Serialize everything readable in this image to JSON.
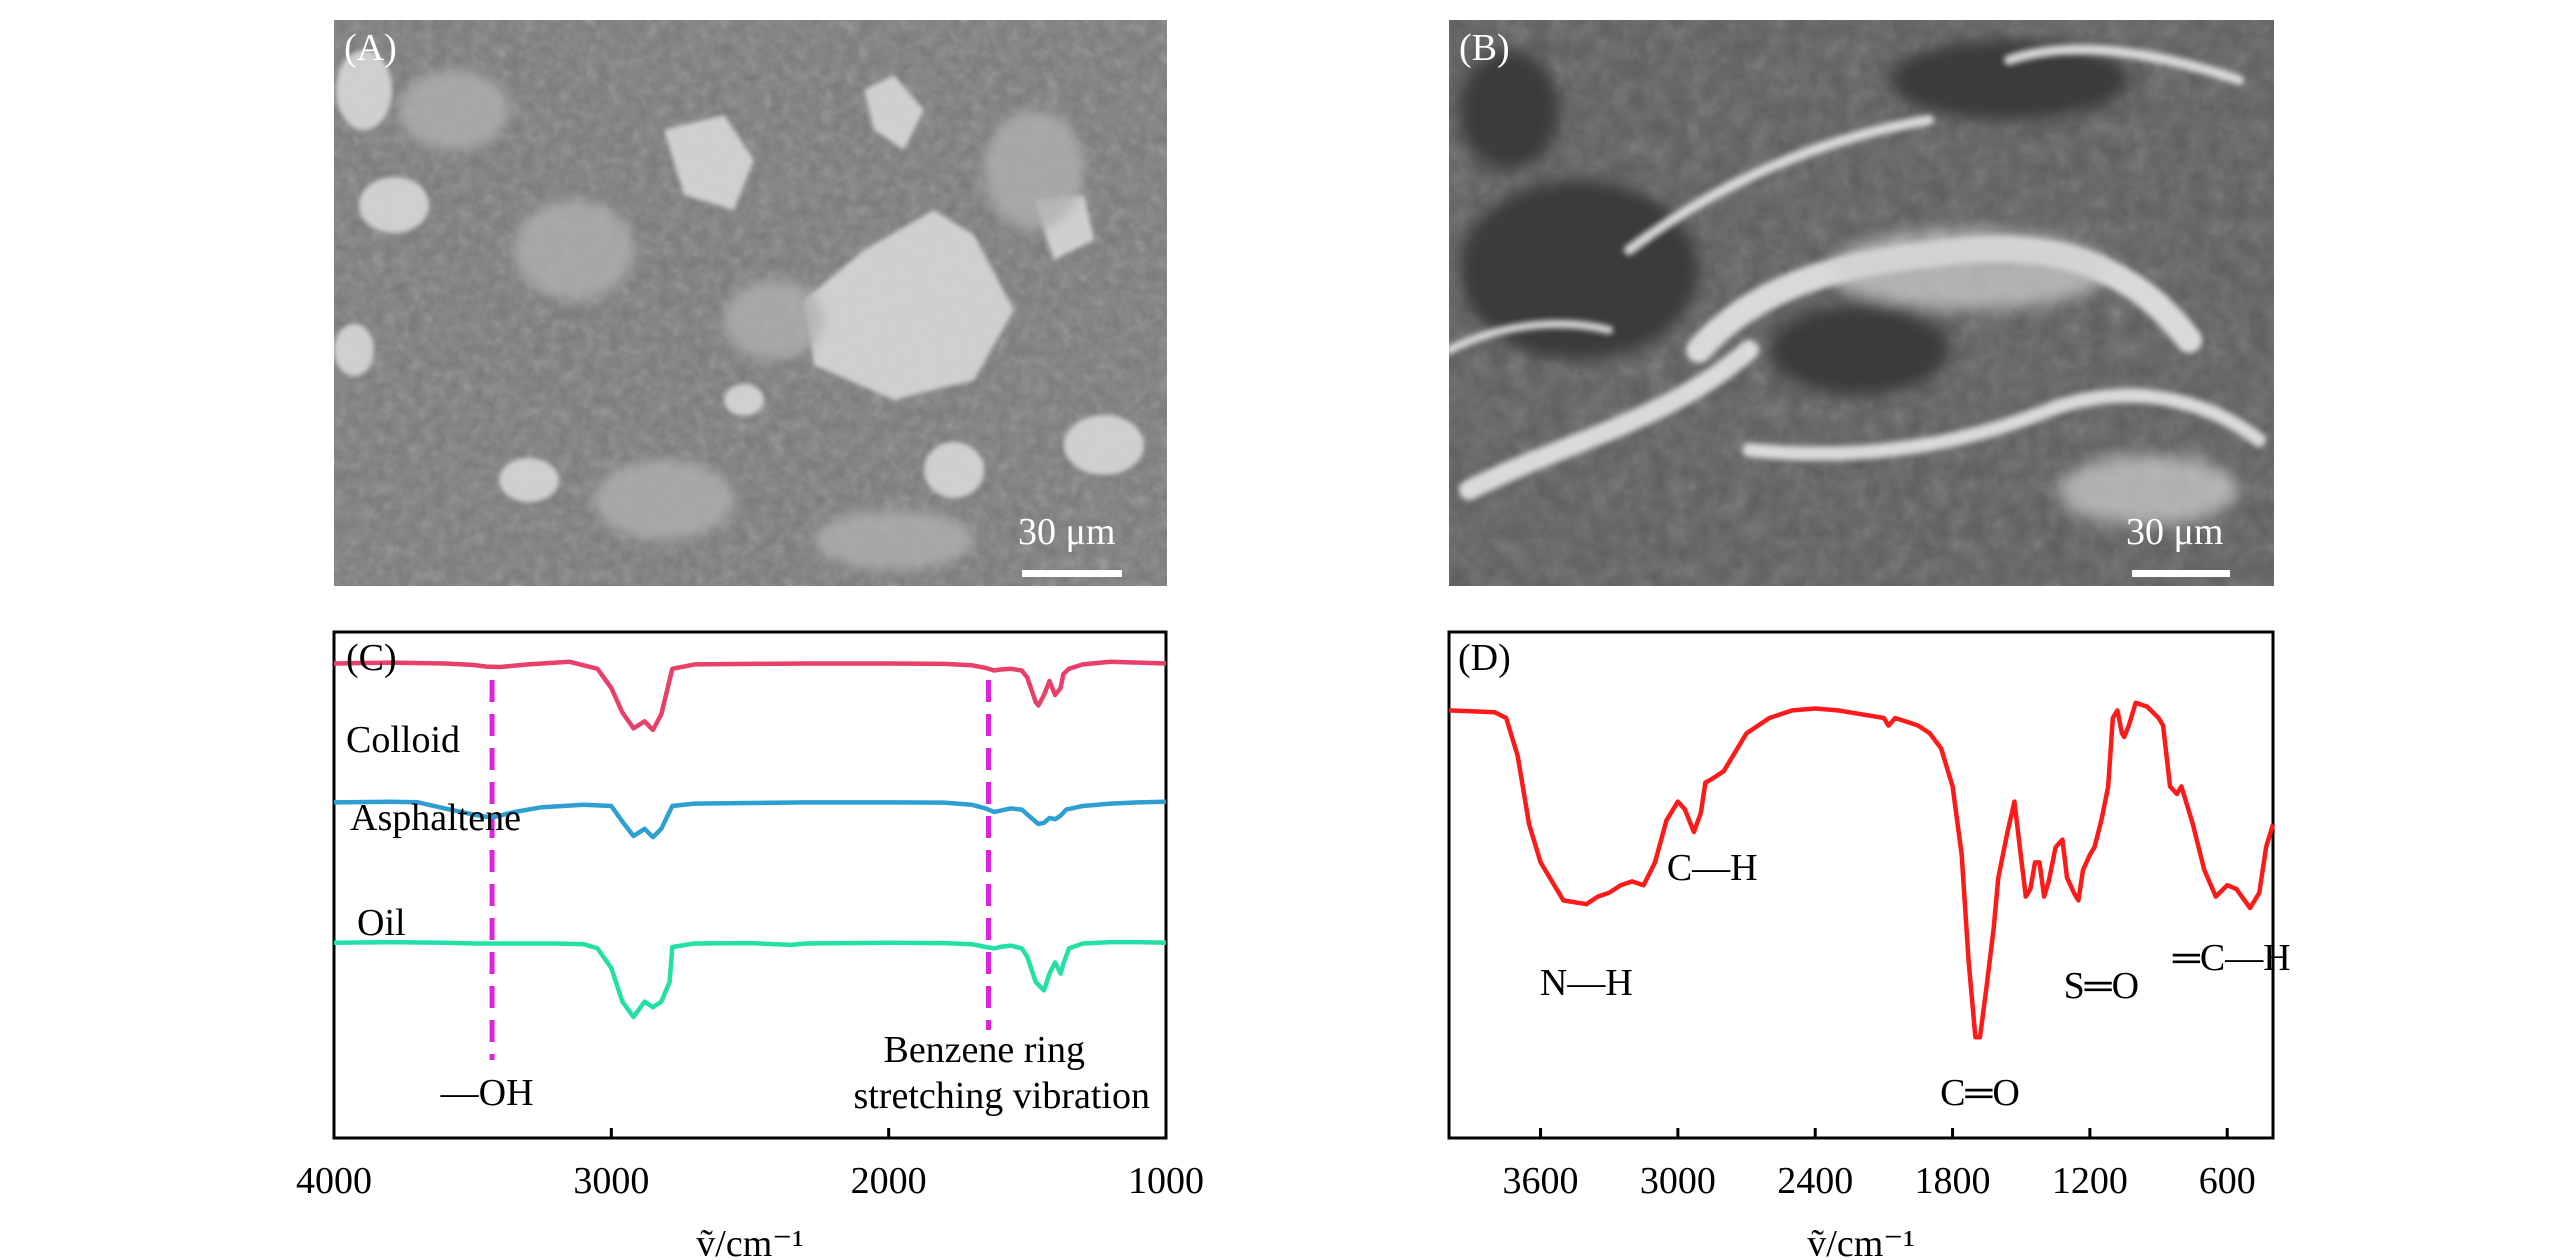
{
  "panels": {
    "A": {
      "label": "(A)",
      "scale_bar": "30 μm"
    },
    "B": {
      "label": "(B)",
      "scale_bar": "30 μm"
    }
  },
  "chart_data": [
    {
      "panel_label": "(C)",
      "type": "line",
      "xlabel": "ṽ/cm⁻¹",
      "xlim": [
        4000,
        1000
      ],
      "x_ticks": [
        4000,
        3000,
        2000,
        1000
      ],
      "colors": {
        "Colloid": "#e8406a",
        "Asphaltene": "#2f9fd3",
        "Oil": "#22e0a6",
        "marker": "#dd22dd"
      },
      "series": [
        {
          "name": "Colloid",
          "x": [
            4000,
            3800,
            3600,
            3500,
            3450,
            3400,
            3300,
            3150,
            3050,
            3000,
            2960,
            2920,
            2880,
            2850,
            2820,
            2780,
            2700,
            2500,
            2300,
            2000,
            1800,
            1700,
            1650,
            1620,
            1600,
            1560,
            1520,
            1500,
            1470,
            1460,
            1440,
            1420,
            1400,
            1380,
            1370,
            1350,
            1300,
            1200,
            1100,
            1000
          ],
          "y": [
            0.98,
            0.985,
            0.98,
            0.972,
            0.962,
            0.96,
            0.975,
            0.99,
            0.95,
            0.84,
            0.7,
            0.61,
            0.65,
            0.6,
            0.69,
            0.95,
            0.975,
            0.978,
            0.98,
            0.98,
            0.978,
            0.97,
            0.955,
            0.94,
            0.945,
            0.95,
            0.94,
            0.9,
            0.76,
            0.74,
            0.8,
            0.88,
            0.8,
            0.84,
            0.92,
            0.95,
            0.975,
            0.99,
            0.985,
            0.98
          ]
        },
        {
          "name": "Asphaltene",
          "x": [
            4000,
            3800,
            3700,
            3600,
            3500,
            3450,
            3420,
            3350,
            3250,
            3100,
            3000,
            2960,
            2920,
            2880,
            2850,
            2820,
            2780,
            2700,
            2500,
            2300,
            2000,
            1800,
            1700,
            1650,
            1620,
            1600,
            1560,
            1520,
            1500,
            1460,
            1440,
            1420,
            1400,
            1380,
            1360,
            1300,
            1200,
            1100,
            1000
          ],
          "y": [
            0.98,
            0.985,
            0.982,
            0.93,
            0.88,
            0.86,
            0.86,
            0.9,
            0.94,
            0.96,
            0.95,
            0.82,
            0.7,
            0.76,
            0.69,
            0.76,
            0.95,
            0.97,
            0.975,
            0.98,
            0.98,
            0.978,
            0.96,
            0.93,
            0.9,
            0.91,
            0.93,
            0.92,
            0.88,
            0.8,
            0.81,
            0.85,
            0.84,
            0.87,
            0.92,
            0.95,
            0.97,
            0.98,
            0.985
          ]
        },
        {
          "name": "Oil",
          "x": [
            4000,
            3800,
            3600,
            3500,
            3400,
            3300,
            3200,
            3100,
            3050,
            3000,
            2960,
            2920,
            2880,
            2850,
            2820,
            2790,
            2780,
            2700,
            2500,
            2350,
            2300,
            2000,
            1800,
            1700,
            1650,
            1620,
            1600,
            1560,
            1520,
            1500,
            1470,
            1440,
            1420,
            1400,
            1380,
            1370,
            1350,
            1300,
            1200,
            1100,
            1000
          ],
          "y": [
            0.98,
            0.985,
            0.98,
            0.975,
            0.975,
            0.975,
            0.975,
            0.97,
            0.94,
            0.8,
            0.56,
            0.45,
            0.56,
            0.52,
            0.56,
            0.7,
            0.95,
            0.975,
            0.978,
            0.965,
            0.975,
            0.98,
            0.978,
            0.97,
            0.95,
            0.94,
            0.95,
            0.96,
            0.94,
            0.88,
            0.7,
            0.64,
            0.76,
            0.84,
            0.76,
            0.83,
            0.94,
            0.975,
            0.985,
            0.985,
            0.98
          ]
        }
      ],
      "series_labels": [
        "Colloid",
        "Asphaltene",
        "Oil"
      ],
      "annotations": {
        "oh": {
          "text": "—OH",
          "x": 3430
        },
        "benzene_line1": "Benzene ring",
        "benzene_line2": "stretching vibration",
        "benzene_x": 1640
      }
    },
    {
      "panel_label": "(D)",
      "type": "line",
      "xlabel": "ṽ/cm⁻¹",
      "xlim": [
        4000,
        400
      ],
      "x_ticks": [
        3600,
        3000,
        2400,
        1800,
        1200,
        600
      ],
      "colors": {
        "line": "#ff1a1a"
      },
      "series": [
        {
          "name": "",
          "x": [
            4000,
            3800,
            3750,
            3700,
            3650,
            3600,
            3500,
            3400,
            3350,
            3300,
            3250,
            3200,
            3150,
            3100,
            3050,
            3000,
            2970,
            2950,
            2930,
            2900,
            2880,
            2850,
            2800,
            2700,
            2600,
            2500,
            2400,
            2300,
            2200,
            2100,
            2080,
            2050,
            2000,
            1950,
            1900,
            1850,
            1800,
            1760,
            1730,
            1700,
            1680,
            1650,
            1620,
            1600,
            1560,
            1530,
            1500,
            1480,
            1460,
            1440,
            1420,
            1400,
            1380,
            1350,
            1320,
            1300,
            1270,
            1250,
            1230,
            1200,
            1180,
            1150,
            1120,
            1100,
            1080,
            1060,
            1050,
            1030,
            1000,
            950,
            900,
            880,
            850,
            820,
            800,
            750,
            700,
            650,
            600,
            560,
            500,
            460,
            430,
            400
          ],
          "y": [
            0.92,
            0.915,
            0.9,
            0.8,
            0.62,
            0.52,
            0.42,
            0.41,
            0.43,
            0.44,
            0.46,
            0.47,
            0.46,
            0.52,
            0.63,
            0.68,
            0.66,
            0.63,
            0.6,
            0.65,
            0.73,
            0.74,
            0.76,
            0.86,
            0.9,
            0.92,
            0.925,
            0.92,
            0.91,
            0.9,
            0.88,
            0.9,
            0.89,
            0.88,
            0.86,
            0.82,
            0.72,
            0.54,
            0.26,
            0.06,
            0.06,
            0.2,
            0.35,
            0.48,
            0.6,
            0.68,
            0.53,
            0.43,
            0.45,
            0.52,
            0.52,
            0.43,
            0.47,
            0.56,
            0.58,
            0.48,
            0.44,
            0.42,
            0.5,
            0.54,
            0.56,
            0.63,
            0.72,
            0.9,
            0.92,
            0.86,
            0.85,
            0.88,
            0.94,
            0.93,
            0.9,
            0.88,
            0.72,
            0.7,
            0.72,
            0.62,
            0.5,
            0.43,
            0.46,
            0.45,
            0.4,
            0.44,
            0.56,
            0.62
          ]
        }
      ],
      "annotations": [
        {
          "text": "N—H",
          "x": 3400
        },
        {
          "text": "C—H",
          "x": 2850
        },
        {
          "text": "C═O",
          "x": 1680
        },
        {
          "text": "S═O",
          "x": 1150
        },
        {
          "text": "═C—H",
          "x": 580
        }
      ]
    }
  ]
}
